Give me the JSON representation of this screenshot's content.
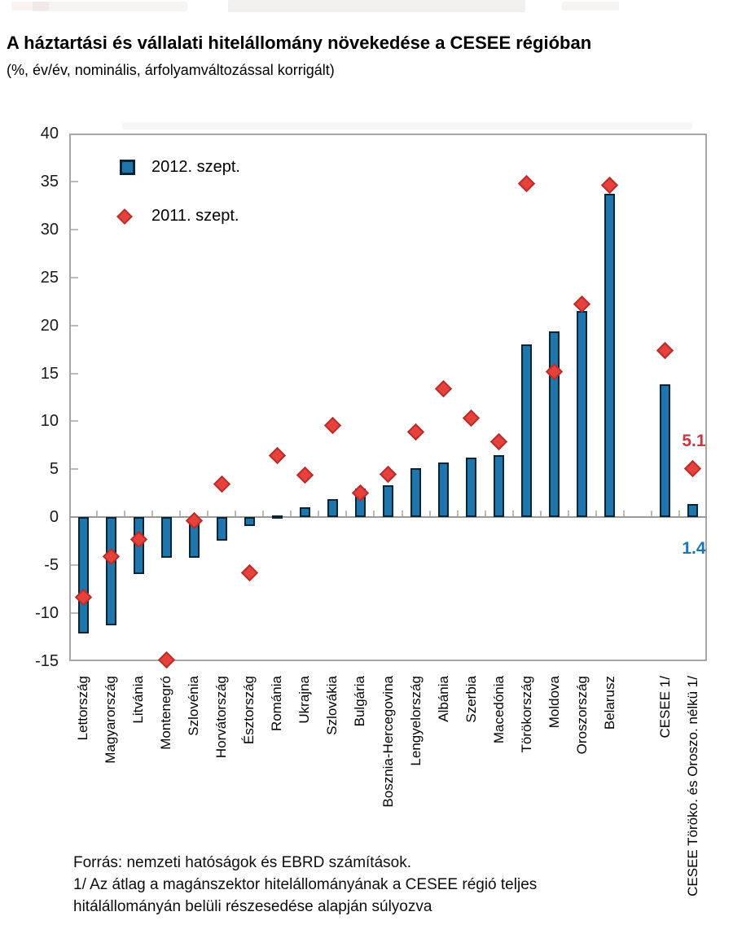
{
  "page": {
    "title": "A háztartási és vállalati hitelállomány növekedése a CESEE régióban",
    "subtitle": "(%, év/év, nominális, árfolyamváltozással korrigált)"
  },
  "legend": {
    "items": [
      {
        "label": "2012. szept.",
        "marker": "blue-square",
        "color": "#1E76AD"
      },
      {
        "label": "2011. szept.",
        "marker": "red-diamond",
        "color": "#E8413C"
      }
    ]
  },
  "footer": {
    "lines": [
      "Forrás: nemzeti hatóságok és EBRD számítások.",
      "1/ Az átlag a magánszektor hitelállományának a CESEE régió teljes",
      "hitálállományán belüli részesedése alapján súlyozva"
    ]
  },
  "chart_data": {
    "type": "bar",
    "title": "A háztartási és vállalati hitelállomány növekedése a CESEE régióban",
    "subtitle": "(%, év/év, nominális, árfolyamváltozással korrigált)",
    "ylim": [
      -15,
      40
    ],
    "y_ticks": [
      40,
      35,
      30,
      25,
      20,
      15,
      10,
      5,
      0,
      -5,
      -10,
      -15
    ],
    "grid": false,
    "legend_position": "top-left",
    "gap_after_index": 19,
    "categories": [
      "Lettország",
      "Magyarország",
      "Litvánia",
      "Montenegró",
      "Szlovénia",
      "Horvátország",
      "Észtország",
      "Románia",
      "Ukrajna",
      "Szlovákia",
      "Bulgária",
      "Bosznia-Hercegovina",
      "Lengyelország",
      "Albánia",
      "Szerbia",
      "Macedónia",
      "Törökország",
      "Moldova",
      "Oroszország",
      "Belarusz",
      "CESEE 1/",
      "CESEE Töröko. és Oroszo. nélkü 1/"
    ],
    "series": [
      {
        "name": "2012. szept.",
        "style": "bar",
        "color": "#1E76AD",
        "values": [
          -12.1,
          -11.3,
          -5.9,
          -4.2,
          -4.2,
          -2.4,
          -0.9,
          0.2,
          1.0,
          1.9,
          3.0,
          3.3,
          5.1,
          5.7,
          6.2,
          6.5,
          18.0,
          19.4,
          21.5,
          33.7,
          13.9,
          1.4
        ]
      },
      {
        "name": "2011. szept.",
        "style": "diamond",
        "color": "#E8413C",
        "values": [
          -8.3,
          -4.1,
          -2.3,
          -14.9,
          -0.4,
          3.5,
          -5.8,
          6.4,
          4.4,
          9.6,
          2.5,
          4.5,
          8.9,
          13.4,
          10.3,
          7.9,
          34.8,
          15.2,
          22.2,
          34.6,
          17.4,
          5.1
        ]
      }
    ],
    "annotations": [
      {
        "text": "5.1",
        "color": "#CB3743",
        "category_index": 21,
        "y_value": 7.9
      },
      {
        "text": "1.4",
        "color": "#1B76B0",
        "category_index": 21,
        "y_value": -3.3
      }
    ]
  }
}
